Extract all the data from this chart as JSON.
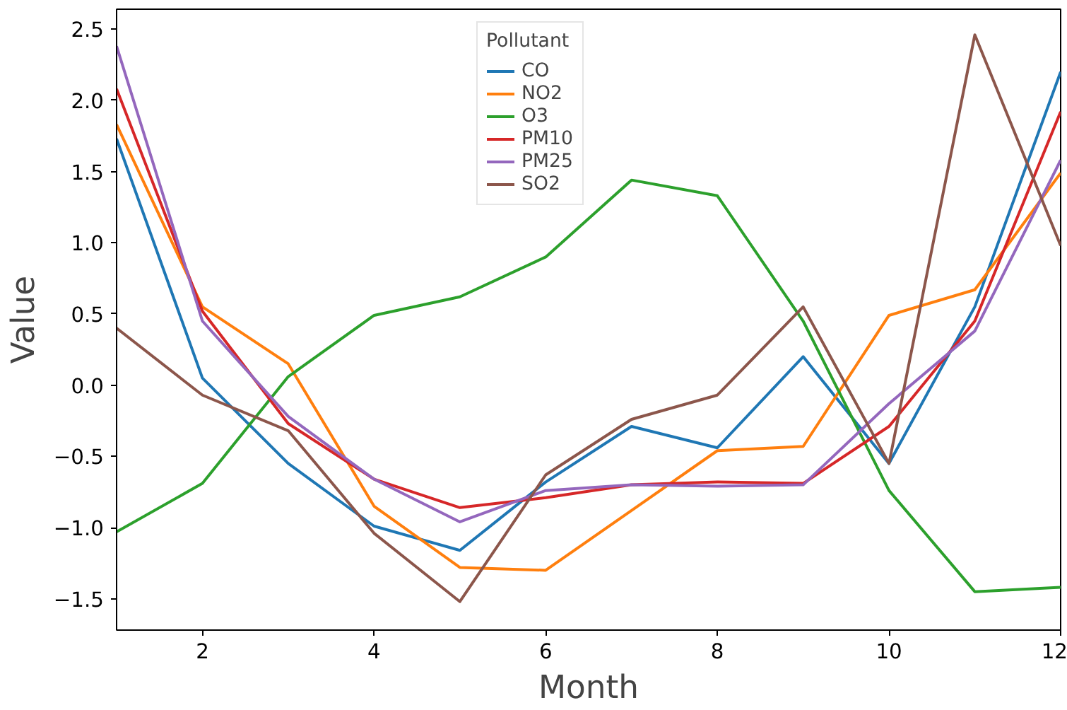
{
  "chart_data": {
    "type": "line",
    "xlabel": "Month",
    "ylabel": "Value",
    "legend_title": "Pollutant",
    "legend": "top",
    "grid": false,
    "line_style": "solid",
    "x": [
      1,
      2,
      3,
      4,
      5,
      6,
      7,
      8,
      9,
      10,
      11,
      12
    ],
    "xlim": [
      1,
      12
    ],
    "xticks": [
      2,
      4,
      6,
      8,
      10,
      12
    ],
    "ylim": [
      -1.72,
      2.64
    ],
    "yticks": [
      {
        "value": -1.5,
        "label": "−1.5"
      },
      {
        "value": -1,
        "label": "−1.0"
      },
      {
        "value": -0.5,
        "label": "−0.5"
      },
      {
        "value": 0,
        "label": "0.0"
      },
      {
        "value": 0.5,
        "label": "0.5"
      },
      {
        "value": 1,
        "label": "1.0"
      },
      {
        "value": 1.5,
        "label": "1.5"
      },
      {
        "value": 2,
        "label": "2.0"
      },
      {
        "value": 2.5,
        "label": "2.5"
      }
    ],
    "series": [
      {
        "name": "CO",
        "color": "#1f77b4",
        "values": [
          1.73,
          0.05,
          -0.55,
          -0.99,
          -1.16,
          -0.68,
          -0.29,
          -0.44,
          0.2,
          -0.55,
          0.55,
          2.2
        ]
      },
      {
        "name": "NO2",
        "color": "#ff7f0e",
        "values": [
          1.83,
          0.55,
          0.15,
          -0.85,
          -1.28,
          -1.3,
          -0.88,
          -0.46,
          -0.43,
          0.49,
          0.67,
          1.49
        ]
      },
      {
        "name": "O3",
        "color": "#2ca02c",
        "values": [
          -1.03,
          -0.69,
          0.06,
          0.49,
          0.62,
          0.9,
          1.44,
          1.33,
          0.45,
          -0.74,
          -1.45,
          -1.42
        ]
      },
      {
        "name": "PM10",
        "color": "#d62728",
        "values": [
          2.08,
          0.52,
          -0.27,
          -0.66,
          -0.86,
          -0.79,
          -0.7,
          -0.68,
          -0.69,
          -0.29,
          0.45,
          1.92
        ]
      },
      {
        "name": "PM25",
        "color": "#9467bd",
        "values": [
          2.38,
          0.45,
          -0.22,
          -0.66,
          -0.96,
          -0.74,
          -0.7,
          -0.71,
          -0.7,
          -0.13,
          0.38,
          1.58
        ]
      },
      {
        "name": "SO2",
        "color": "#8c564b",
        "values": [
          0.4,
          -0.07,
          -0.32,
          -1.04,
          -1.52,
          -0.63,
          -0.24,
          -0.07,
          0.55,
          -0.55,
          2.46,
          0.98
        ]
      }
    ]
  }
}
